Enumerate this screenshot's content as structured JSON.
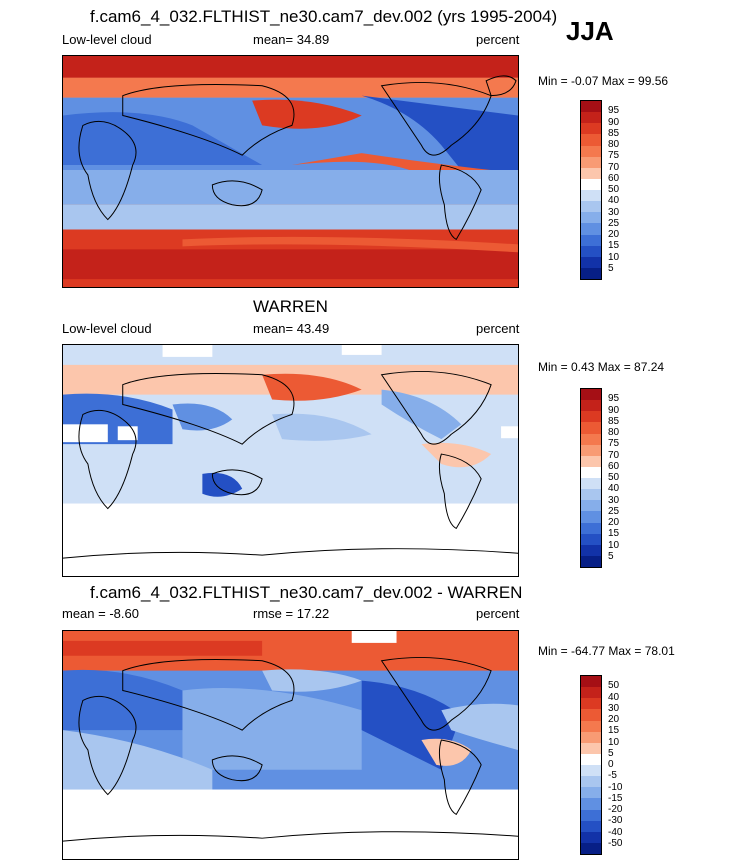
{
  "season": "JJA",
  "panels": [
    {
      "title": "f.cam6_4_032.FLTHIST_ne30.cam7_dev.002 (yrs 1995-2004)",
      "left_label": "Low-level cloud",
      "center_label": "mean=  34.89",
      "right_label": "percent",
      "minmax": "Min =  -0.07 Max =  99.56",
      "levels": [
        "95",
        "90",
        "85",
        "80",
        "75",
        "70",
        "60",
        "50",
        "40",
        "30",
        "25",
        "20",
        "15",
        "10",
        "5"
      ],
      "colors": [
        "#a50f15",
        "#c4221a",
        "#dc3a22",
        "#ec5a34",
        "#f4794e",
        "#f89b74",
        "#fcc6ac",
        "#ffffff",
        "#cfe0f6",
        "#a9c6ef",
        "#86aeea",
        "#6090e2",
        "#3d6fd6",
        "#2450c4",
        "#1232a8",
        "#071f86"
      ]
    },
    {
      "title": "WARREN",
      "left_label": "Low-level cloud",
      "center_label": "mean=  43.49",
      "right_label": "percent",
      "minmax": "Min =   0.43 Max =  87.24",
      "levels": [
        "95",
        "90",
        "85",
        "80",
        "75",
        "70",
        "60",
        "50",
        "40",
        "30",
        "25",
        "20",
        "15",
        "10",
        "5"
      ],
      "colors": [
        "#a50f15",
        "#c4221a",
        "#dc3a22",
        "#ec5a34",
        "#f4794e",
        "#f89b74",
        "#fcc6ac",
        "#ffffff",
        "#cfe0f6",
        "#a9c6ef",
        "#86aeea",
        "#6090e2",
        "#3d6fd6",
        "#2450c4",
        "#1232a8",
        "#071f86"
      ]
    },
    {
      "title": "f.cam6_4_032.FLTHIST_ne30.cam7_dev.002 - WARREN",
      "left_label": "mean =  -8.60",
      "center_label": "rmse =  17.22",
      "right_label": "percent",
      "minmax": "Min = -64.77 Max =  78.01",
      "levels": [
        "50",
        "40",
        "30",
        "20",
        "15",
        "10",
        "5",
        "0",
        "-5",
        "-10",
        "-15",
        "-20",
        "-30",
        "-40",
        "-50"
      ],
      "colors": [
        "#a50f15",
        "#c4221a",
        "#dc3a22",
        "#ec5a34",
        "#f4794e",
        "#f89b74",
        "#fcc6ac",
        "#ffffff",
        "#cfe0f6",
        "#a9c6ef",
        "#86aeea",
        "#6090e2",
        "#3d6fd6",
        "#2450c4",
        "#1232a8",
        "#071f86"
      ]
    }
  ]
}
